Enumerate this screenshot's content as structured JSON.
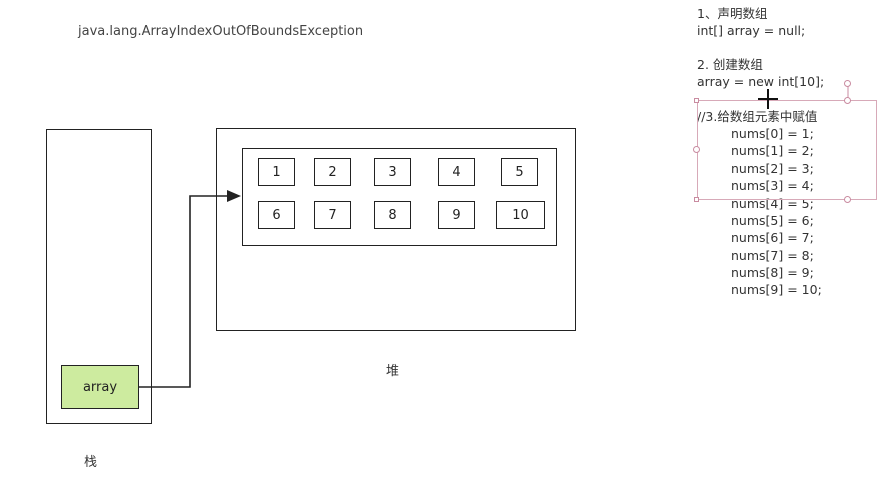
{
  "exception_text": "java.lang.ArrayIndexOutOfBoundsException",
  "diagram": {
    "stack_label": "栈",
    "heap_label": "堆",
    "reference_label": "array",
    "array_values": [
      "1",
      "2",
      "3",
      "4",
      "5",
      "6",
      "7",
      "8",
      "9",
      "10"
    ]
  },
  "code": {
    "step1_title": "1、声明数组",
    "step1_code": "int[] array = null;",
    "step2_title": "2. 创建数组",
    "step2_code": "array = new int[10];",
    "step3_title": "//3.给数组元素中赋值",
    "assignments": [
      "nums[0] = 1;",
      "nums[1] = 2;",
      "nums[2] = 3;",
      "nums[3] = 4;",
      "nums[4] = 5;",
      "nums[5] = 6;",
      "nums[6] = 7;",
      "nums[7] = 8;",
      "nums[8] = 9;",
      "nums[9] = 10;"
    ]
  },
  "colors": {
    "reference_fill": "#cdeb9f",
    "outline": "#222222",
    "selection": "#d7a9b8"
  },
  "icons": [
    "crosshair-cursor-icon"
  ]
}
